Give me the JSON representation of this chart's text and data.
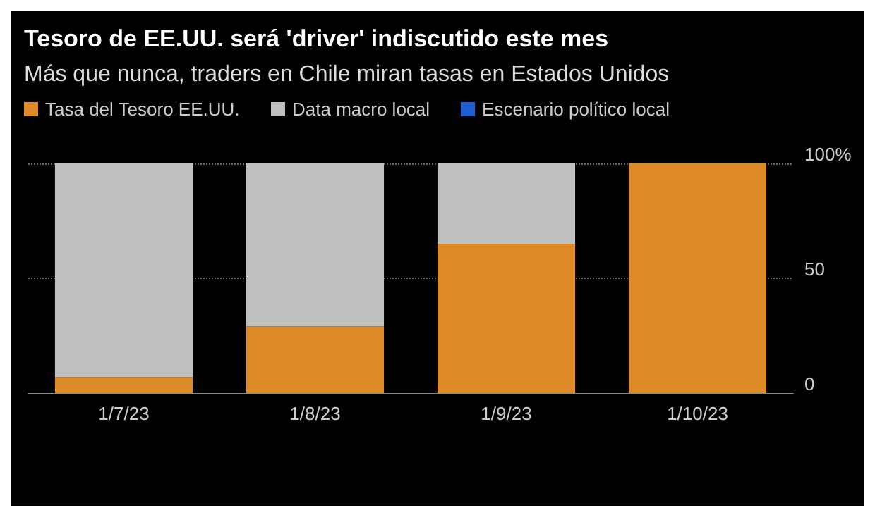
{
  "chart_data": {
    "type": "bar",
    "title": "Tesoro de EE.UU. será 'driver' indiscutido este mes",
    "subtitle": "Más que nunca, traders en Chile miran tasas en Estados Unidos",
    "categories": [
      "1/7/23",
      "1/8/23",
      "1/9/23",
      "1/10/23"
    ],
    "series": [
      {
        "name": "Tasa del Tesoro EE.UU.",
        "color": "#dd8a27",
        "values": [
          7,
          29,
          65,
          100
        ]
      },
      {
        "name": "Data macro local",
        "color": "#bfbfbf",
        "values": [
          93,
          71,
          35,
          0
        ]
      },
      {
        "name": "Escenario político local",
        "color": "#1f5fd6",
        "values": [
          0,
          0,
          0,
          0
        ]
      }
    ],
    "stacked": true,
    "ylim": [
      0,
      100
    ],
    "yticks": [
      0,
      50,
      {
        "value": 100,
        "label": "100%"
      }
    ],
    "grid": "y",
    "legend": "top left"
  }
}
